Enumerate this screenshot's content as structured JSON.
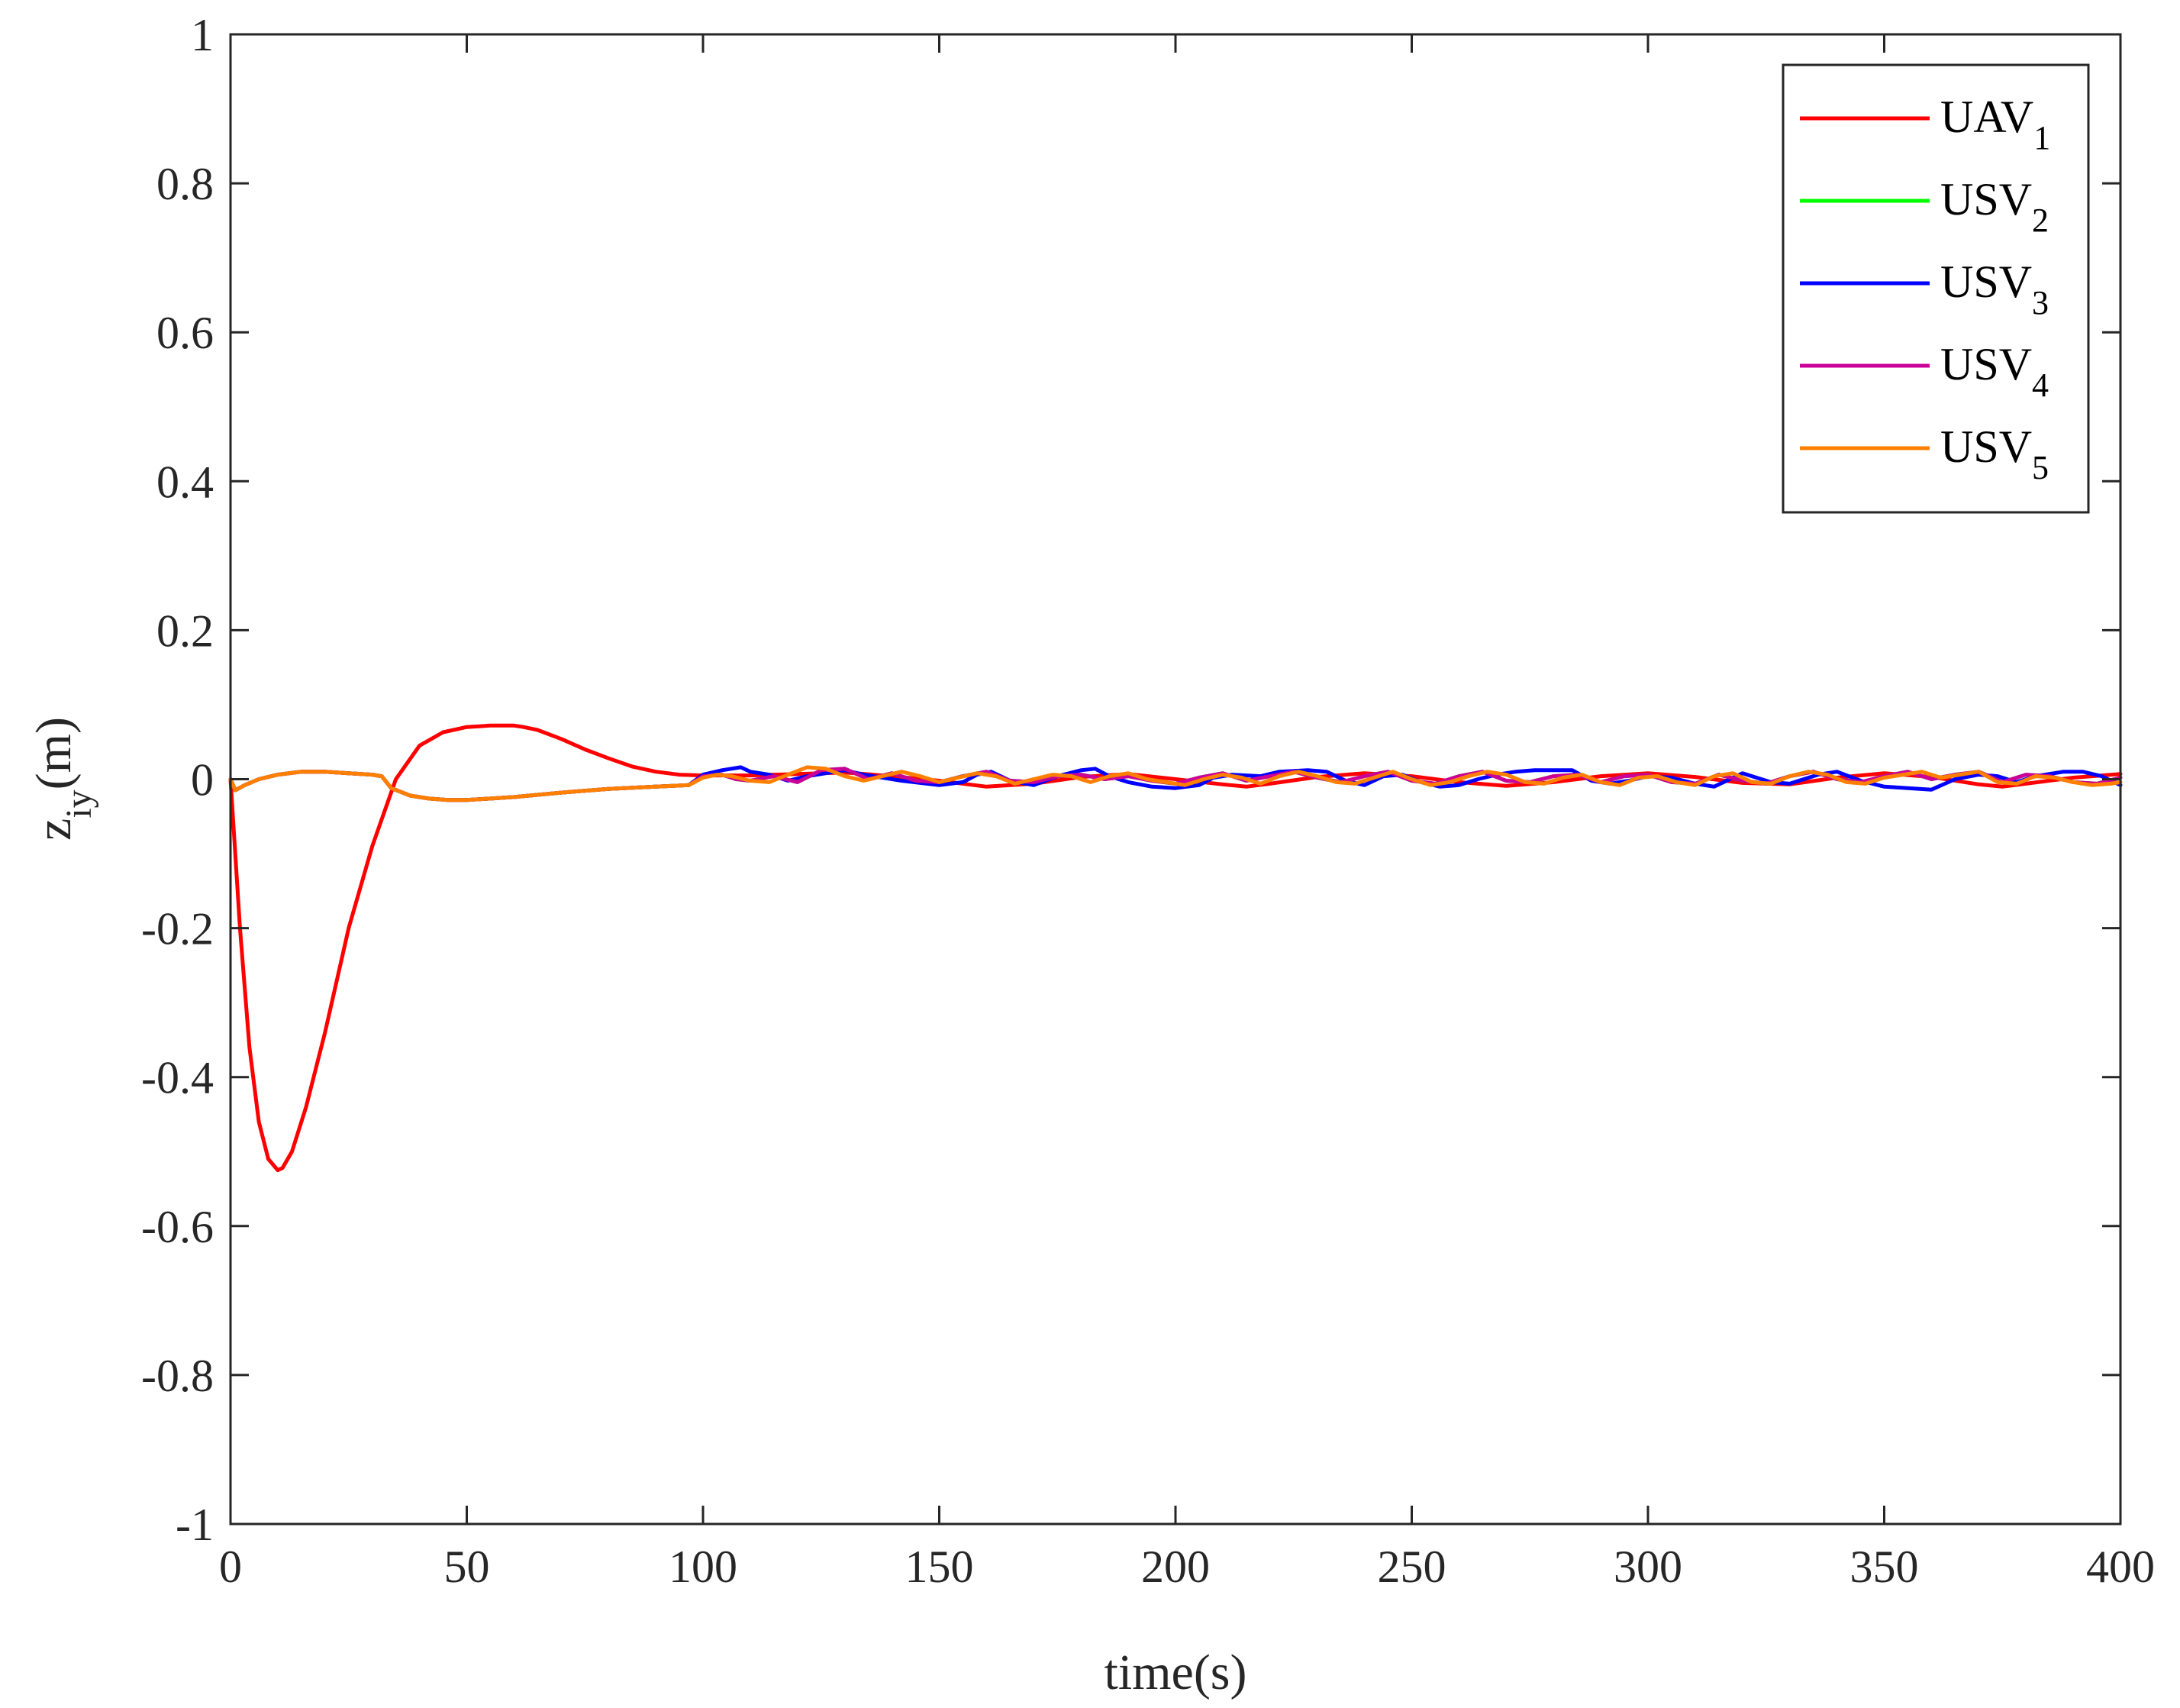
{
  "chart_data": {
    "type": "line",
    "title": "",
    "xlabel": "time(s)",
    "ylabel": {
      "main": "z",
      "sub": "iy",
      "rest": "(m)"
    },
    "xlim": [
      0,
      400
    ],
    "ylim": [
      -1,
      1
    ],
    "xticks": [
      "0",
      "50",
      "100",
      "150",
      "200",
      "250",
      "300",
      "350",
      "400"
    ],
    "xtick_values": [
      0,
      50,
      100,
      150,
      200,
      250,
      300,
      350,
      400
    ],
    "yticks": [
      "1",
      "0.8",
      "0.6",
      "0.4",
      "0.2",
      "0",
      "-0.2",
      "-0.4",
      "-0.6",
      "-0.8",
      "-1"
    ],
    "ytick_values": [
      1,
      0.8,
      0.6,
      0.4,
      0.2,
      0,
      -0.2,
      -0.4,
      -0.6,
      -0.8,
      -1
    ],
    "grid": false,
    "legend_position": "top-right",
    "series": [
      {
        "name": "UAV",
        "sub": "1",
        "color": "#ff0000",
        "x": [
          0,
          2,
          4,
          6,
          8,
          10,
          11,
          13,
          16,
          20,
          25,
          30,
          35,
          40,
          45,
          50,
          55,
          60,
          62,
          65,
          70,
          75,
          80,
          85,
          90,
          95,
          100,
          110,
          120,
          130,
          140,
          150,
          160,
          170,
          180,
          190,
          200,
          210,
          215,
          220,
          230,
          240,
          250,
          260,
          270,
          280,
          290,
          300,
          310,
          320,
          330,
          340,
          350,
          360,
          370,
          375,
          380,
          390,
          400
        ],
        "y": [
          0,
          -0.2,
          -0.36,
          -0.46,
          -0.51,
          -0.525,
          -0.522,
          -0.5,
          -0.44,
          -0.34,
          -0.2,
          -0.09,
          0.0,
          0.045,
          0.063,
          0.07,
          0.072,
          0.072,
          0.07,
          0.066,
          0.054,
          0.04,
          0.028,
          0.017,
          0.01,
          0.006,
          0.005,
          0.005,
          0.007,
          0.009,
          0.004,
          -0.002,
          -0.01,
          -0.006,
          0.003,
          0.007,
          0.0,
          -0.007,
          -0.01,
          -0.006,
          0.003,
          0.008,
          0.004,
          -0.004,
          -0.009,
          -0.004,
          0.004,
          0.008,
          0.003,
          -0.005,
          -0.007,
          0.002,
          0.008,
          0.003,
          -0.007,
          -0.01,
          -0.006,
          0.002,
          0.007
        ]
      },
      {
        "name": "USV",
        "sub": "2",
        "color": "#00ff00",
        "x": [
          0,
          1,
          3,
          6,
          10,
          15,
          20,
          25,
          30,
          32,
          34,
          38,
          42,
          46,
          50,
          55,
          60,
          70,
          80,
          90,
          97,
          100,
          104,
          107,
          110,
          115,
          120,
          125,
          130,
          135,
          140,
          145,
          150,
          155,
          160,
          165,
          170,
          175,
          180,
          185,
          190,
          195,
          200,
          205,
          210,
          215,
          220,
          225,
          230,
          235,
          240,
          245,
          250,
          255,
          260,
          265,
          270,
          275,
          280,
          285,
          290,
          295,
          300,
          305,
          310,
          315,
          320,
          325,
          330,
          335,
          340,
          345,
          350,
          355,
          360,
          365,
          370,
          375,
          380,
          385,
          390,
          395,
          400
        ],
        "y": [
          0,
          -0.015,
          -0.008,
          0.0,
          0.006,
          0.01,
          0.01,
          0.008,
          0.006,
          0.004,
          -0.012,
          -0.022,
          -0.026,
          -0.028,
          -0.028,
          -0.026,
          -0.024,
          -0.018,
          -0.013,
          -0.01,
          -0.008,
          0.004,
          0.006,
          0.0,
          -0.002,
          0.004,
          -0.004,
          0.012,
          0.014,
          0.0,
          0.008,
          -0.002,
          -0.004,
          0.004,
          0.01,
          -0.002,
          -0.004,
          0.004,
          0.006,
          0.0,
          0.004,
          -0.002,
          -0.006,
          0.002,
          0.008,
          -0.002,
          0.004,
          0.01,
          0.002,
          -0.004,
          0.004,
          0.01,
          -0.002,
          -0.006,
          0.004,
          0.01,
          -0.002,
          -0.004,
          0.004,
          0.006,
          -0.004,
          0.004,
          0.006,
          -0.004,
          -0.006,
          0.006,
          -0.002,
          -0.006,
          0.004,
          0.01,
          0.0,
          -0.004,
          0.004,
          0.01,
          0.0,
          0.006,
          0.01,
          -0.004,
          0.006,
          0.004,
          -0.004,
          -0.006,
          0.002
        ]
      },
      {
        "name": "USV",
        "sub": "3",
        "color": "#0000ff",
        "x": [
          0,
          1,
          3,
          6,
          10,
          15,
          20,
          25,
          30,
          32,
          34,
          38,
          42,
          46,
          50,
          55,
          60,
          70,
          80,
          90,
          97,
          100,
          104,
          108,
          110,
          114,
          118,
          122,
          126,
          130,
          134,
          138,
          142,
          150,
          155,
          158,
          161,
          165,
          170,
          175,
          180,
          183,
          186,
          190,
          195,
          200,
          205,
          208,
          212,
          218,
          222,
          228,
          232,
          236,
          240,
          244,
          248,
          252,
          256,
          260,
          264,
          268,
          272,
          276,
          280,
          284,
          288,
          292,
          296,
          300,
          305,
          310,
          314,
          320,
          326,
          330,
          336,
          340,
          345,
          350,
          355,
          360,
          365,
          370,
          374,
          378,
          382,
          388,
          392,
          396,
          400
        ],
        "y": [
          0,
          -0.015,
          -0.008,
          0.0,
          0.006,
          0.01,
          0.01,
          0.008,
          0.006,
          0.004,
          -0.012,
          -0.022,
          -0.026,
          -0.028,
          -0.028,
          -0.026,
          -0.024,
          -0.018,
          -0.013,
          -0.01,
          -0.008,
          0.006,
          0.012,
          0.016,
          0.01,
          0.006,
          -0.002,
          0.004,
          0.008,
          0.012,
          0.006,
          0.002,
          -0.002,
          -0.008,
          -0.004,
          0.006,
          0.01,
          -0.002,
          -0.008,
          0.004,
          0.012,
          0.014,
          0.004,
          -0.004,
          -0.01,
          -0.012,
          -0.008,
          0.002,
          0.006,
          0.004,
          0.01,
          0.012,
          0.01,
          -0.002,
          -0.008,
          0.004,
          0.006,
          -0.004,
          -0.01,
          -0.008,
          0.0,
          0.006,
          0.01,
          0.012,
          0.012,
          0.012,
          -0.002,
          -0.006,
          -0.002,
          0.004,
          0.002,
          -0.006,
          -0.01,
          0.008,
          -0.004,
          -0.006,
          0.006,
          0.01,
          -0.002,
          -0.01,
          -0.012,
          -0.014,
          0.0,
          0.006,
          0.004,
          -0.004,
          0.004,
          0.01,
          0.01,
          0.004,
          -0.008
        ]
      },
      {
        "name": "USV",
        "sub": "4",
        "color": "#cc0099",
        "x": [
          0,
          1,
          3,
          6,
          10,
          15,
          20,
          25,
          30,
          32,
          34,
          38,
          42,
          46,
          50,
          55,
          60,
          70,
          80,
          90,
          97,
          100,
          104,
          107,
          110,
          115,
          120,
          125,
          130,
          135,
          140,
          145,
          150,
          155,
          160,
          165,
          170,
          175,
          180,
          185,
          190,
          195,
          200,
          205,
          210,
          215,
          220,
          225,
          230,
          235,
          240,
          245,
          250,
          255,
          260,
          265,
          270,
          275,
          280,
          285,
          290,
          295,
          300,
          305,
          310,
          315,
          320,
          325,
          330,
          335,
          340,
          345,
          350,
          355,
          360,
          365,
          370,
          375,
          380,
          385,
          390,
          395,
          400
        ],
        "y": [
          0,
          -0.015,
          -0.008,
          0.0,
          0.006,
          0.01,
          0.01,
          0.008,
          0.006,
          0.004,
          -0.012,
          -0.022,
          -0.026,
          -0.028,
          -0.028,
          -0.026,
          -0.024,
          -0.018,
          -0.013,
          -0.01,
          -0.008,
          0.004,
          0.006,
          0.0,
          -0.002,
          0.004,
          -0.004,
          0.012,
          0.014,
          0.0,
          0.008,
          -0.002,
          -0.004,
          0.004,
          0.01,
          -0.002,
          -0.004,
          0.004,
          0.006,
          0.0,
          0.004,
          -0.002,
          -0.006,
          0.002,
          0.008,
          -0.002,
          0.004,
          0.01,
          0.002,
          -0.004,
          0.004,
          0.01,
          -0.002,
          -0.006,
          0.004,
          0.01,
          -0.002,
          -0.004,
          0.004,
          0.006,
          -0.004,
          0.004,
          0.006,
          -0.004,
          -0.006,
          0.006,
          -0.002,
          -0.006,
          0.004,
          0.01,
          0.0,
          -0.004,
          0.004,
          0.01,
          0.0,
          0.006,
          0.01,
          -0.004,
          0.006,
          0.004,
          -0.004,
          -0.006,
          0.002
        ]
      },
      {
        "name": "USV",
        "sub": "5",
        "color": "#ff8000",
        "x": [
          0,
          1,
          3,
          6,
          10,
          15,
          20,
          25,
          30,
          32,
          34,
          38,
          42,
          46,
          50,
          55,
          60,
          70,
          80,
          90,
          97,
          100,
          103,
          106,
          110,
          114,
          118,
          122,
          126,
          130,
          134,
          138,
          142,
          146,
          150,
          154,
          158,
          162,
          166,
          170,
          174,
          178,
          182,
          186,
          190,
          194,
          198,
          202,
          206,
          210,
          214,
          218,
          222,
          226,
          230,
          234,
          238,
          242,
          246,
          250,
          254,
          258,
          262,
          266,
          270,
          274,
          278,
          282,
          286,
          290,
          294,
          298,
          302,
          306,
          310,
          314,
          318,
          322,
          326,
          330,
          334,
          338,
          342,
          346,
          350,
          354,
          358,
          362,
          366,
          370,
          374,
          378,
          382,
          386,
          390,
          394,
          398,
          400
        ],
        "y": [
          0,
          -0.015,
          -0.008,
          0.0,
          0.006,
          0.01,
          0.01,
          0.008,
          0.006,
          0.004,
          -0.012,
          -0.022,
          -0.026,
          -0.028,
          -0.028,
          -0.026,
          -0.024,
          -0.018,
          -0.013,
          -0.01,
          -0.008,
          0.002,
          0.006,
          0.004,
          -0.002,
          -0.004,
          0.006,
          0.016,
          0.014,
          0.004,
          -0.002,
          0.004,
          0.01,
          0.004,
          -0.004,
          0.002,
          0.008,
          0.004,
          -0.006,
          0.0,
          0.006,
          0.004,
          -0.004,
          0.004,
          0.008,
          0.0,
          -0.004,
          -0.008,
          0.0,
          0.006,
          0.002,
          -0.006,
          0.004,
          0.01,
          0.004,
          -0.004,
          -0.006,
          0.002,
          0.01,
          0.0,
          -0.008,
          -0.004,
          0.004,
          0.01,
          0.006,
          -0.004,
          -0.006,
          0.002,
          0.006,
          -0.004,
          -0.008,
          0.002,
          0.004,
          -0.004,
          -0.008,
          0.004,
          0.008,
          -0.004,
          -0.006,
          0.004,
          0.01,
          0.006,
          -0.004,
          -0.006,
          0.002,
          0.006,
          0.01,
          0.002,
          0.006,
          0.01,
          -0.004,
          -0.006,
          0.004,
          0.002,
          -0.004,
          -0.008,
          -0.006,
          -0.004
        ]
      }
    ]
  }
}
